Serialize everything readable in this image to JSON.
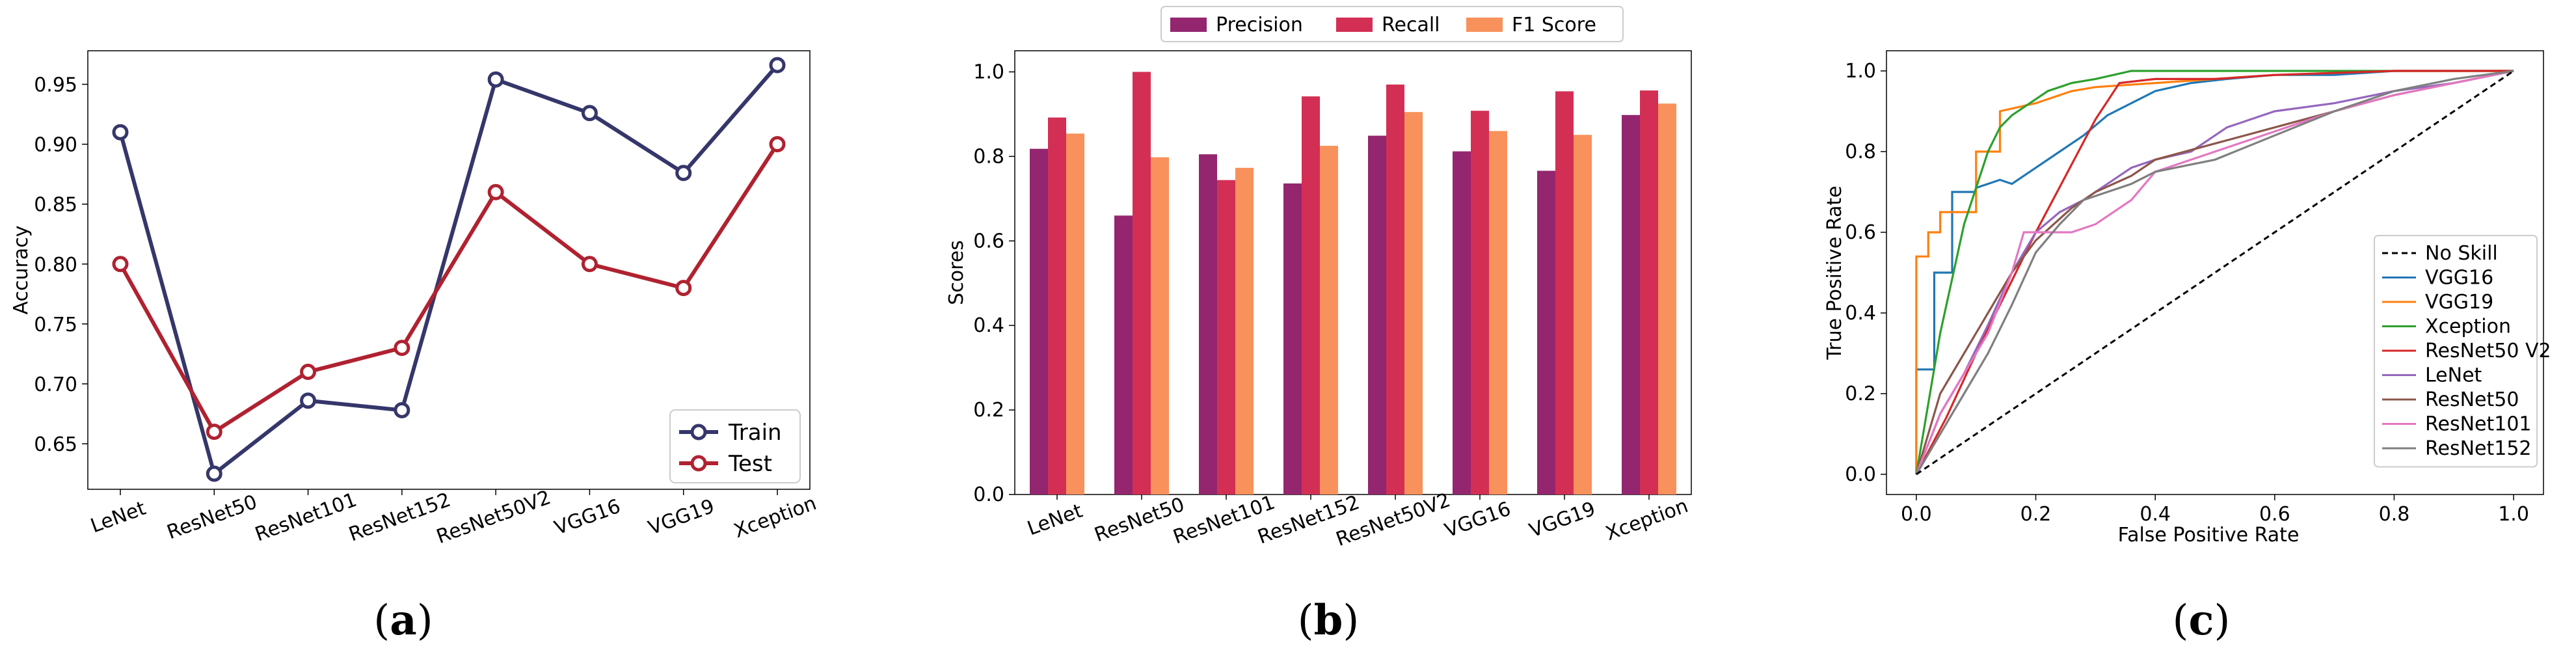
{
  "chart_data": [
    {
      "type": "line",
      "caption_label": "a",
      "title": "",
      "xlabel": "",
      "ylabel": "Accuracy",
      "categories": [
        "LeNet",
        "ResNet50",
        "ResNet101",
        "ResNet152",
        "ResNet50V2",
        "VGG16",
        "VGG19",
        "Xception"
      ],
      "ylim": [
        0.612,
        0.978
      ],
      "yticks": [
        "0.65",
        "0.70",
        "0.75",
        "0.80",
        "0.85",
        "0.90",
        "0.95"
      ],
      "ytick_values": [
        0.65,
        0.7,
        0.75,
        0.8,
        0.85,
        0.9,
        0.95
      ],
      "legend_position": "lower-right",
      "series": [
        {
          "name": "Train",
          "color": "#35366a",
          "values": [
            0.91,
            0.625,
            0.686,
            0.678,
            0.954,
            0.926,
            0.876,
            0.966
          ]
        },
        {
          "name": "Test",
          "color": "#b02230",
          "values": [
            0.8,
            0.66,
            0.71,
            0.73,
            0.86,
            0.8,
            0.78,
            0.9
          ]
        }
      ]
    },
    {
      "type": "bar",
      "caption_label": "b",
      "title": "",
      "xlabel": "",
      "ylabel": "Scores",
      "categories": [
        "LeNet",
        "ResNet50",
        "ResNet101",
        "ResNet152",
        "ResNet50V2",
        "VGG16",
        "VGG19",
        "Xception"
      ],
      "ylim": [
        0.0,
        1.05
      ],
      "yticks": [
        "0.0",
        "0.2",
        "0.4",
        "0.6",
        "0.8",
        "1.0"
      ],
      "ytick_values": [
        0.0,
        0.2,
        0.4,
        0.6,
        0.8,
        1.0
      ],
      "legend_position": "top-center",
      "series": [
        {
          "name": "Precision",
          "color": "#93266e",
          "values": [
            0.818,
            0.66,
            0.805,
            0.736,
            0.849,
            0.812,
            0.766,
            0.898
          ]
        },
        {
          "name": "Recall",
          "color": "#d32f54",
          "values": [
            0.892,
            1.0,
            0.744,
            0.942,
            0.97,
            0.908,
            0.954,
            0.956
          ]
        },
        {
          "name": "F1 Score",
          "color": "#f8915b",
          "values": [
            0.854,
            0.798,
            0.773,
            0.825,
            0.905,
            0.86,
            0.851,
            0.925
          ]
        }
      ]
    },
    {
      "type": "line",
      "caption_label": "c",
      "title": "",
      "xlabel": "False Positive Rate",
      "ylabel": "True Positive Rate",
      "xlim": [
        -0.05,
        1.05
      ],
      "ylim": [
        -0.05,
        1.05
      ],
      "xticks": [
        "0.0",
        "0.2",
        "0.4",
        "0.6",
        "0.8",
        "1.0"
      ],
      "xtick_values": [
        0.0,
        0.2,
        0.4,
        0.6,
        0.8,
        1.0
      ],
      "yticks": [
        "0.0",
        "0.2",
        "0.4",
        "0.6",
        "0.8",
        "1.0"
      ],
      "ytick_values": [
        0.0,
        0.2,
        0.4,
        0.6,
        0.8,
        1.0
      ],
      "legend_position": "lower-right",
      "series": [
        {
          "name": "No Skill",
          "color": "#000000",
          "dashed": true,
          "x": [
            0,
            1
          ],
          "y": [
            0,
            1
          ]
        },
        {
          "name": "VGG16",
          "color": "#1f77b4",
          "x": [
            0,
            0,
            0.03,
            0.03,
            0.06,
            0.06,
            0.1,
            0.1,
            0.14,
            0.16,
            0.2,
            0.24,
            0.28,
            0.32,
            0.36,
            0.4,
            0.46,
            0.52,
            0.6,
            0.7,
            0.8,
            1.0
          ],
          "y": [
            0,
            0.26,
            0.26,
            0.5,
            0.5,
            0.7,
            0.7,
            0.71,
            0.73,
            0.72,
            0.76,
            0.8,
            0.84,
            0.89,
            0.92,
            0.95,
            0.97,
            0.98,
            0.99,
            0.99,
            1.0,
            1.0
          ]
        },
        {
          "name": "VGG19",
          "color": "#ff7f0e",
          "x": [
            0,
            0,
            0.02,
            0.02,
            0.04,
            0.04,
            0.1,
            0.1,
            0.14,
            0.14,
            0.2,
            0.26,
            0.3,
            0.4,
            0.5,
            0.6,
            0.8,
            1.0
          ],
          "y": [
            0,
            0.54,
            0.54,
            0.6,
            0.6,
            0.65,
            0.65,
            0.8,
            0.8,
            0.9,
            0.92,
            0.95,
            0.96,
            0.97,
            0.98,
            0.99,
            1.0,
            1.0
          ]
        },
        {
          "name": "Xception",
          "color": "#2ca02c",
          "x": [
            0,
            0.04,
            0.08,
            0.12,
            0.14,
            0.16,
            0.18,
            0.2,
            0.22,
            0.26,
            0.3,
            0.36,
            0.5,
            0.7,
            1.0
          ],
          "y": [
            0,
            0.35,
            0.62,
            0.8,
            0.86,
            0.89,
            0.91,
            0.93,
            0.95,
            0.97,
            0.98,
            1.0,
            1.0,
            1.0,
            1.0
          ]
        },
        {
          "name": "ResNet50 V2",
          "color": "#d62728",
          "x": [
            0,
            0.05,
            0.1,
            0.15,
            0.2,
            0.25,
            0.3,
            0.34,
            0.4,
            0.5,
            0.6,
            0.8,
            1.0
          ],
          "y": [
            0,
            0.14,
            0.3,
            0.45,
            0.6,
            0.74,
            0.88,
            0.97,
            0.98,
            0.98,
            0.99,
            1.0,
            1.0
          ]
        },
        {
          "name": "LeNet",
          "color": "#9467bd",
          "x": [
            0,
            0.04,
            0.08,
            0.12,
            0.16,
            0.2,
            0.24,
            0.28,
            0.32,
            0.36,
            0.4,
            0.46,
            0.52,
            0.6,
            0.7,
            0.8,
            0.9,
            1.0
          ],
          "y": [
            0,
            0.15,
            0.25,
            0.37,
            0.5,
            0.6,
            0.65,
            0.68,
            0.72,
            0.76,
            0.78,
            0.8,
            0.86,
            0.9,
            0.92,
            0.95,
            0.97,
            1.0
          ]
        },
        {
          "name": "ResNet50",
          "color": "#8c564b",
          "x": [
            0,
            0.04,
            0.08,
            0.12,
            0.16,
            0.2,
            0.26,
            0.3,
            0.36,
            0.4,
            0.5,
            0.6,
            0.7,
            0.8,
            0.9,
            1.0
          ],
          "y": [
            0,
            0.2,
            0.3,
            0.4,
            0.5,
            0.58,
            0.66,
            0.7,
            0.74,
            0.78,
            0.82,
            0.86,
            0.9,
            0.94,
            0.97,
            1.0
          ]
        },
        {
          "name": "ResNet101",
          "color": "#e377c2",
          "x": [
            0,
            0.04,
            0.08,
            0.12,
            0.16,
            0.18,
            0.2,
            0.26,
            0.3,
            0.36,
            0.4,
            0.5,
            0.6,
            0.7,
            0.8,
            0.9,
            1.0
          ],
          "y": [
            0,
            0.15,
            0.25,
            0.35,
            0.5,
            0.6,
            0.6,
            0.6,
            0.62,
            0.68,
            0.75,
            0.8,
            0.85,
            0.9,
            0.94,
            0.97,
            1.0
          ]
        },
        {
          "name": "ResNet152",
          "color": "#7f7f7f",
          "x": [
            0,
            0.04,
            0.08,
            0.12,
            0.16,
            0.2,
            0.24,
            0.28,
            0.32,
            0.36,
            0.4,
            0.5,
            0.6,
            0.7,
            0.8,
            0.9,
            1.0
          ],
          "y": [
            0,
            0.1,
            0.2,
            0.3,
            0.42,
            0.55,
            0.62,
            0.68,
            0.7,
            0.72,
            0.75,
            0.78,
            0.84,
            0.9,
            0.95,
            0.98,
            1.0
          ]
        }
      ]
    }
  ]
}
